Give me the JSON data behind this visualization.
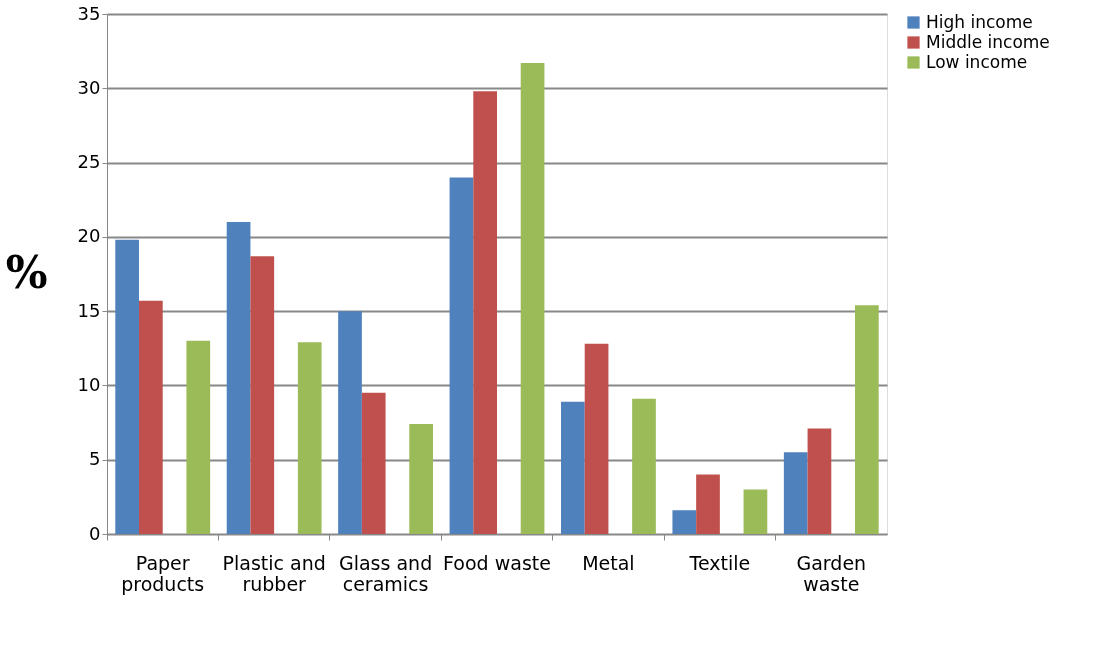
{
  "chart_data": {
    "type": "bar",
    "ylabel": "%",
    "categories": [
      "Paper products",
      "Plastic and rubber",
      "Glass and ceramics",
      "Food waste",
      "Metal",
      "Textile",
      "Garden waste"
    ],
    "series": [
      {
        "name": "High income",
        "color": "#4f81bd",
        "values": [
          19.8,
          21.0,
          15.0,
          24.0,
          8.9,
          1.6,
          5.5
        ]
      },
      {
        "name": "Middle income",
        "color": "#c0504d",
        "values": [
          15.7,
          18.7,
          9.5,
          29.8,
          12.8,
          4.0,
          7.1
        ]
      },
      {
        "name": "Low income",
        "color": "#9bbb59",
        "values": [
          13.0,
          12.9,
          7.4,
          31.7,
          9.1,
          3.0,
          15.4
        ]
      }
    ],
    "ylim": [
      0,
      35
    ],
    "yticks": [
      0,
      5,
      10,
      15,
      20,
      25,
      30,
      35
    ],
    "grid": "y",
    "legend": "right"
  }
}
